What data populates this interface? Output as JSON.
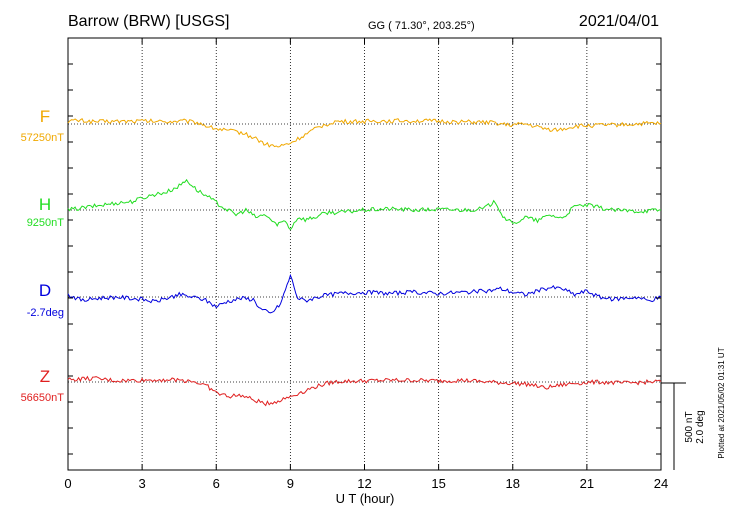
{
  "header": {
    "station": "Barrow (BRW)  [USGS]",
    "coords": "GG ( 71.30°, 203.25°)",
    "date": "2021/04/01"
  },
  "side_note": "Plotted at 2021/05/02 01:31  UT",
  "chart_data": {
    "type": "line",
    "title": "",
    "xlabel": "U T (hour)",
    "ylabel": "",
    "xlim": [
      0,
      24
    ],
    "x_ticks": [
      0,
      3,
      6,
      9,
      12,
      15,
      18,
      21,
      24
    ],
    "grid": true,
    "scale_bar": {
      "label1": "500 nT",
      "label2": "2.0 deg"
    },
    "series": [
      {
        "name": "F",
        "baseline_label": "57250nT",
        "color": "#f0a800",
        "unit": "nT offset from baseline",
        "points": [
          [
            0,
            25
          ],
          [
            0.5,
            30
          ],
          [
            1,
            20
          ],
          [
            2,
            22
          ],
          [
            3,
            25
          ],
          [
            4,
            20
          ],
          [
            4.7,
            25
          ],
          [
            5.3,
            10
          ],
          [
            5.8,
            -30
          ],
          [
            6.3,
            -50
          ],
          [
            7,
            -70
          ],
          [
            7.6,
            -120
          ],
          [
            8,
            -170
          ],
          [
            8.5,
            -190
          ],
          [
            9,
            -160
          ],
          [
            9.6,
            -90
          ],
          [
            10.2,
            -20
          ],
          [
            10.8,
            20
          ],
          [
            11.5,
            20
          ],
          [
            12.5,
            25
          ],
          [
            13.5,
            28
          ],
          [
            14.5,
            25
          ],
          [
            15.5,
            20
          ],
          [
            16.5,
            15
          ],
          [
            17.3,
            10
          ],
          [
            17.8,
            -10
          ],
          [
            18.5,
            0
          ],
          [
            19.3,
            -40
          ],
          [
            19.8,
            -50
          ],
          [
            20.5,
            -20
          ],
          [
            21.5,
            -10
          ],
          [
            22.5,
            -5
          ],
          [
            23.5,
            5
          ],
          [
            24,
            5
          ]
        ]
      },
      {
        "name": "H",
        "baseline_label": "9250nT",
        "color": "#22dd22",
        "unit": "nT offset from baseline",
        "points": [
          [
            0,
            0
          ],
          [
            1,
            30
          ],
          [
            2,
            60
          ],
          [
            2.6,
            70
          ],
          [
            3,
            100
          ],
          [
            3.5,
            130
          ],
          [
            4,
            150
          ],
          [
            4.5,
            200
          ],
          [
            4.8,
            250
          ],
          [
            5.2,
            170
          ],
          [
            5.8,
            90
          ],
          [
            6.3,
            20
          ],
          [
            6.8,
            -40
          ],
          [
            7.2,
            0
          ],
          [
            7.6,
            -60
          ],
          [
            8,
            -40
          ],
          [
            8.4,
            -120
          ],
          [
            8.8,
            -90
          ],
          [
            9,
            -160
          ],
          [
            9.3,
            -60
          ],
          [
            9.6,
            -80
          ],
          [
            10,
            -60
          ],
          [
            10.5,
            -20
          ],
          [
            11,
            -20
          ],
          [
            12,
            0
          ],
          [
            13,
            10
          ],
          [
            14,
            0
          ],
          [
            15,
            5
          ],
          [
            16,
            0
          ],
          [
            16.8,
            10
          ],
          [
            17.3,
            70
          ],
          [
            17.6,
            -50
          ],
          [
            18,
            -120
          ],
          [
            18.5,
            -60
          ],
          [
            19,
            -90
          ],
          [
            19.5,
            -40
          ],
          [
            20,
            -70
          ],
          [
            20.5,
            30
          ],
          [
            21,
            40
          ],
          [
            22,
            0
          ],
          [
            23,
            -10
          ],
          [
            24,
            0
          ]
        ]
      },
      {
        "name": "D",
        "baseline_label": "-2.7deg",
        "color": "#0000dd",
        "unit": "scaled offset from baseline",
        "points": [
          [
            0,
            20
          ],
          [
            0.6,
            -30
          ],
          [
            1.2,
            -10
          ],
          [
            2,
            0
          ],
          [
            3,
            -20
          ],
          [
            3.5,
            -40
          ],
          [
            4,
            -10
          ],
          [
            4.5,
            20
          ],
          [
            5,
            0
          ],
          [
            5.5,
            -20
          ],
          [
            6,
            -80
          ],
          [
            6.4,
            -40
          ],
          [
            7,
            -10
          ],
          [
            7.5,
            -20
          ],
          [
            7.8,
            -100
          ],
          [
            8.2,
            -140
          ],
          [
            8.6,
            -60
          ],
          [
            9,
            180
          ],
          [
            9.3,
            -10
          ],
          [
            9.6,
            -30
          ],
          [
            10.3,
            10
          ],
          [
            11,
            30
          ],
          [
            12,
            40
          ],
          [
            13,
            30
          ],
          [
            14,
            40
          ],
          [
            15,
            30
          ],
          [
            16,
            40
          ],
          [
            17,
            50
          ],
          [
            17.5,
            70
          ],
          [
            18,
            40
          ],
          [
            18.5,
            20
          ],
          [
            19,
            50
          ],
          [
            19.5,
            80
          ],
          [
            20,
            70
          ],
          [
            20.5,
            20
          ],
          [
            21,
            50
          ],
          [
            21.5,
            0
          ],
          [
            22,
            -20
          ],
          [
            23,
            0
          ],
          [
            23.5,
            -30
          ],
          [
            24,
            0
          ]
        ]
      },
      {
        "name": "Z",
        "baseline_label": "56650nT",
        "color": "#e02020",
        "unit": "nT offset from baseline",
        "points": [
          [
            0,
            20
          ],
          [
            1,
            30
          ],
          [
            2,
            10
          ],
          [
            3,
            15
          ],
          [
            4,
            20
          ],
          [
            5,
            10
          ],
          [
            5.6,
            -30
          ],
          [
            6,
            -90
          ],
          [
            6.5,
            -120
          ],
          [
            7,
            -110
          ],
          [
            7.5,
            -150
          ],
          [
            8,
            -180
          ],
          [
            8.5,
            -160
          ],
          [
            9,
            -120
          ],
          [
            9.5,
            -80
          ],
          [
            10,
            -40
          ],
          [
            10.5,
            -10
          ],
          [
            11,
            5
          ],
          [
            12,
            10
          ],
          [
            13,
            15
          ],
          [
            14,
            15
          ],
          [
            15,
            10
          ],
          [
            16,
            15
          ],
          [
            17,
            0
          ],
          [
            18,
            -10
          ],
          [
            18.7,
            -20
          ],
          [
            19.3,
            -50
          ],
          [
            19.8,
            -30
          ],
          [
            20.5,
            -10
          ],
          [
            21.5,
            0
          ],
          [
            22.5,
            -10
          ],
          [
            23.5,
            0
          ],
          [
            24,
            5
          ]
        ]
      }
    ]
  }
}
